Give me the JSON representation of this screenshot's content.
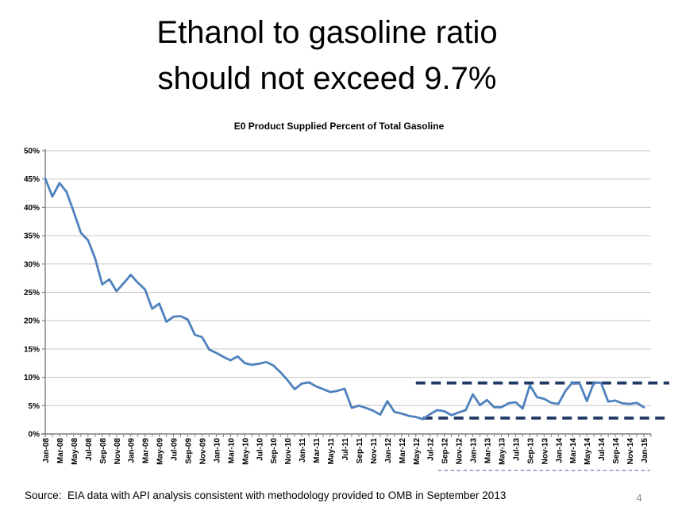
{
  "slide": {
    "title_line1": "Ethanol to gasoline ratio",
    "title_line2": "should not exceed 9.7%",
    "source": "Source:  EIA data with API analysis consistent with methodology provided to OMB in September 2013",
    "page_number": "4"
  },
  "chart_data": {
    "type": "line",
    "title": "E0 Product Supplied Percent of Total Gasoline",
    "xlabel": "",
    "ylabel": "",
    "ylim": [
      0,
      50
    ],
    "ytick_step": 5,
    "ytick_format": "percent",
    "xlabel_interval": 2,
    "grid": true,
    "legend": "none",
    "colors": {
      "series_line": "#4F81BD",
      "reference_dash": "#1F3864",
      "axis_line": "#7F7F7F",
      "grid_line": "#C6C6C6",
      "underline_dash": "#8293B5"
    },
    "x": [
      "Jan-08",
      "Feb-08",
      "Mar-08",
      "Apr-08",
      "May-08",
      "Jun-08",
      "Jul-08",
      "Aug-08",
      "Sep-08",
      "Oct-08",
      "Nov-08",
      "Dec-08",
      "Jan-09",
      "Feb-09",
      "Mar-09",
      "Apr-09",
      "May-09",
      "Jun-09",
      "Jul-09",
      "Aug-09",
      "Sep-09",
      "Oct-09",
      "Nov-09",
      "Dec-09",
      "Jan-10",
      "Feb-10",
      "Mar-10",
      "Apr-10",
      "May-10",
      "Jun-10",
      "Jul-10",
      "Aug-10",
      "Sep-10",
      "Oct-10",
      "Nov-10",
      "Dec-10",
      "Jan-11",
      "Feb-11",
      "Mar-11",
      "Apr-11",
      "May-11",
      "Jun-11",
      "Jul-11",
      "Aug-11",
      "Sep-11",
      "Oct-11",
      "Nov-11",
      "Dec-11",
      "Jan-12",
      "Feb-12",
      "Mar-12",
      "Apr-12",
      "May-12",
      "Jun-12",
      "Jul-12",
      "Aug-12",
      "Sep-12",
      "Oct-12",
      "Nov-12",
      "Dec-12",
      "Jan-13",
      "Feb-13",
      "Mar-13",
      "Apr-13",
      "May-13",
      "Jun-13",
      "Jul-13",
      "Aug-13",
      "Sep-13",
      "Oct-13",
      "Nov-13",
      "Dec-13",
      "Jan-14",
      "Feb-14",
      "Mar-14",
      "Apr-14",
      "May-14",
      "Jun-14",
      "Jul-14",
      "Aug-14",
      "Sep-14",
      "Oct-14",
      "Nov-14",
      "Dec-14",
      "Jan-15"
    ],
    "series": [
      {
        "name": "E0 percent of total gasoline",
        "values": [
          45.1,
          41.9,
          44.3,
          42.7,
          39.2,
          35.5,
          34.2,
          31.0,
          26.4,
          27.3,
          25.2,
          26.6,
          28.1,
          26.7,
          25.5,
          22.1,
          23.0,
          19.8,
          20.7,
          20.8,
          20.2,
          17.5,
          17.1,
          14.9,
          14.3,
          13.6,
          13.0,
          13.7,
          12.5,
          12.2,
          12.4,
          12.7,
          12.1,
          10.9,
          9.5,
          7.9,
          8.9,
          9.1,
          8.4,
          7.9,
          7.4,
          7.6,
          8.0,
          4.6,
          5.0,
          4.6,
          4.1,
          3.4,
          5.8,
          3.9,
          3.6,
          3.2,
          3.0,
          2.6,
          3.5,
          4.2,
          4.0,
          3.3,
          3.8,
          4.2,
          7.0,
          5.1,
          6.0,
          4.7,
          4.7,
          5.4,
          5.6,
          4.5,
          8.6,
          6.5,
          6.2,
          5.5,
          5.3,
          7.6,
          9.1,
          8.9,
          5.8,
          9.1,
          9.0,
          5.7,
          5.9,
          5.4,
          5.3,
          5.5,
          4.7
        ]
      }
    ],
    "reference_lines": [
      {
        "name": "upper-bound-line",
        "value": 9.0,
        "start_label": "May-12",
        "style": "dashed"
      },
      {
        "name": "lower-bound-line",
        "value": 2.8,
        "start_label": "Jun-12",
        "style": "dashed"
      }
    ],
    "axis_underline": {
      "start_label": "Sep-12",
      "end_label": "Jan-15",
      "style": "dashed"
    }
  }
}
